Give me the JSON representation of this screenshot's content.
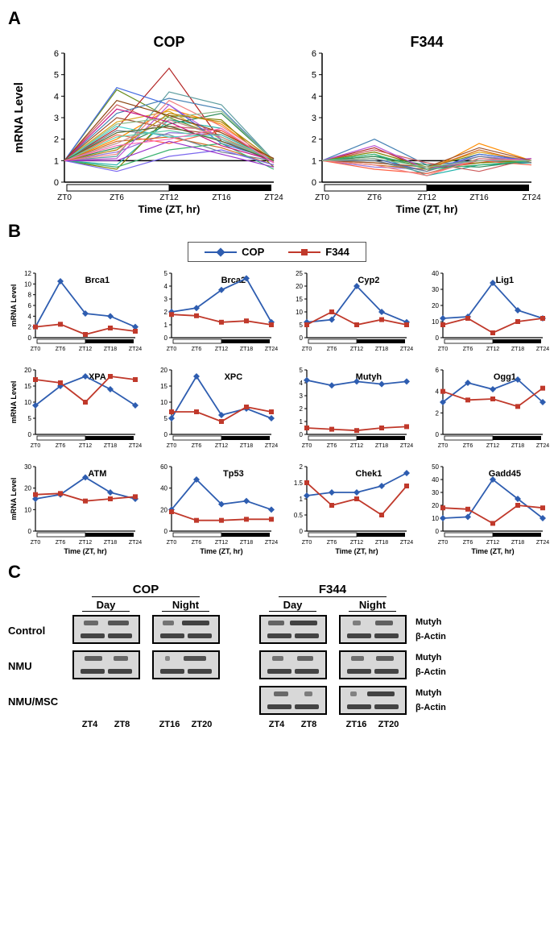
{
  "panelA": {
    "label": "A",
    "leftTitle": "COP",
    "rightTitle": "F344",
    "yLabel": "mRNA Level",
    "xLabel": "Time (ZT, hr)",
    "yMin": 0,
    "yMax": 6,
    "yTick": 1,
    "xTicks": [
      "ZT0",
      "ZT6",
      "ZT12",
      "ZT16",
      "ZT24"
    ],
    "copColors": [
      "#6b8e23",
      "#b22222",
      "#4682b4",
      "#ff8c00",
      "#9370db",
      "#20b2aa",
      "#daa520",
      "#cd5c5c",
      "#5f9ea0",
      "#d2691e",
      "#808000",
      "#4169e1",
      "#ff6347",
      "#2e8b57",
      "#ba55d3",
      "#a0522d",
      "#708090",
      "#3cb371",
      "#f08080",
      "#8fbc8f",
      "#bc8f8f",
      "#7b68ee",
      "#48d1cc",
      "#c71585",
      "#b8860b",
      "#66cdaa",
      "#9932cc",
      "#8b4513",
      "#556b2f",
      "#ff69b4"
    ],
    "copSeries": [
      [
        1,
        4.3,
        3.0,
        2.1,
        1.0
      ],
      [
        1,
        2.5,
        5.3,
        1.9,
        1.1
      ],
      [
        1,
        3.2,
        3.9,
        3.4,
        1.0
      ],
      [
        1,
        2.0,
        3.4,
        2.7,
        0.9
      ],
      [
        1,
        1.4,
        2.3,
        2.2,
        1.0
      ],
      [
        1,
        0.8,
        2.9,
        2.5,
        0.9
      ],
      [
        1,
        2.8,
        3.3,
        2.0,
        1.1
      ],
      [
        1,
        3.6,
        2.6,
        2.4,
        1.0
      ],
      [
        1,
        1.2,
        4.2,
        3.6,
        1.0
      ],
      [
        1,
        1.9,
        2.1,
        1.6,
        0.8
      ],
      [
        1,
        0.6,
        3.1,
        2.9,
        0.7
      ],
      [
        1,
        4.4,
        3.6,
        1.8,
        1.05
      ],
      [
        1,
        2.2,
        1.8,
        2.4,
        1.0
      ],
      [
        1,
        1.6,
        2.7,
        3.2,
        1.0
      ],
      [
        1,
        1.1,
        3.6,
        2.0,
        0.9
      ],
      [
        1,
        3.0,
        2.5,
        2.2,
        1.1
      ],
      [
        1,
        2.4,
        2.2,
        1.4,
        1.0
      ],
      [
        1,
        0.7,
        1.5,
        1.8,
        0.6
      ],
      [
        1,
        1.3,
        3.8,
        2.6,
        1.0
      ],
      [
        1,
        2.7,
        3.0,
        3.3,
        1.0
      ],
      [
        1,
        1.8,
        2.9,
        2.1,
        0.95
      ],
      [
        1,
        0.5,
        1.2,
        1.5,
        0.8
      ],
      [
        1,
        2.6,
        2.1,
        2.2,
        1.0
      ],
      [
        1,
        3.4,
        2.8,
        1.7,
        1.0
      ],
      [
        1,
        1.5,
        3.2,
        2.8,
        1.0
      ],
      [
        1,
        2.1,
        2.4,
        2.0,
        1.0
      ],
      [
        1,
        1.0,
        1.9,
        1.3,
        0.7
      ],
      [
        1,
        3.8,
        3.1,
        2.3,
        1.1
      ],
      [
        1,
        2.3,
        2.6,
        1.9,
        1.0
      ],
      [
        1,
        1.7,
        2.0,
        2.5,
        0.9
      ]
    ],
    "f344Series": [
      [
        1,
        1.2,
        0.7,
        1.3,
        1.0
      ],
      [
        1,
        1.6,
        0.6,
        0.9,
        1.1
      ],
      [
        1,
        2.0,
        0.8,
        1.0,
        0.9
      ],
      [
        1,
        1.1,
        0.5,
        1.8,
        1.0
      ],
      [
        1,
        0.7,
        0.6,
        1.2,
        1.0
      ],
      [
        1,
        1.3,
        0.3,
        0.8,
        0.9
      ],
      [
        1,
        0.9,
        0.7,
        1.4,
        1.0
      ],
      [
        1,
        1.5,
        0.9,
        0.5,
        1.1
      ],
      [
        1,
        1.0,
        0.4,
        1.1,
        1.0
      ],
      [
        1,
        0.8,
        0.6,
        1.5,
        0.9
      ],
      [
        1,
        1.4,
        0.7,
        0.9,
        1.0
      ],
      [
        1,
        1.1,
        0.5,
        1.3,
        1.0
      ],
      [
        1,
        0.6,
        0.4,
        1.0,
        0.8
      ],
      [
        1,
        1.2,
        0.8,
        0.7,
        1.0
      ],
      [
        1,
        1.7,
        0.6,
        1.0,
        1.1
      ],
      [
        1,
        0.9,
        0.7,
        1.6,
        1.0
      ],
      [
        1,
        1.0,
        0.5,
        1.2,
        0.9
      ],
      [
        1,
        1.3,
        0.6,
        0.8,
        1.0
      ],
      [
        1,
        0.8,
        0.3,
        1.1,
        1.0
      ],
      [
        1,
        1.1,
        0.7,
        1.0,
        1.0
      ]
    ]
  },
  "panelB": {
    "label": "B",
    "legend": {
      "cop": "COP",
      "copColor": "#2e5db0",
      "f344": "F344",
      "f344Color": "#c0392b"
    },
    "xTicks": [
      "ZT0",
      "ZT6",
      "ZT12",
      "ZT18",
      "ZT24"
    ],
    "yLabel": "mRNA Level",
    "xLabel": "Time (ZT, hr)",
    "charts": [
      {
        "title": "Brca1",
        "yMax": 12,
        "yTick": 2,
        "cop": [
          2,
          10.5,
          4.5,
          4,
          2
        ],
        "f344": [
          2,
          2.5,
          0.6,
          1.8,
          1.2
        ]
      },
      {
        "title": "Brca2",
        "yMax": 5,
        "yTick": 1,
        "cop": [
          2,
          2.3,
          3.7,
          4.6,
          1.2
        ],
        "f344": [
          1.8,
          1.7,
          1.2,
          1.3,
          1
        ]
      },
      {
        "title": "Cyp2",
        "yMax": 25,
        "yTick": 5,
        "cop": [
          6,
          7,
          20,
          10,
          6
        ],
        "f344": [
          5,
          10,
          5,
          7,
          5
        ]
      },
      {
        "title": "Lig1",
        "yMax": 40,
        "yTick": 10,
        "cop": [
          12,
          13,
          34,
          17,
          12
        ],
        "f344": [
          8,
          12,
          3,
          10,
          12
        ]
      },
      {
        "title": "XPA",
        "yMax": 20,
        "yTick": 5,
        "cop": [
          9,
          15,
          18,
          14,
          9
        ],
        "f344": [
          17,
          16,
          10,
          18,
          17
        ]
      },
      {
        "title": "XPC",
        "yMax": 20,
        "yTick": 5,
        "cop": [
          5,
          18,
          6,
          8,
          5
        ],
        "f344": [
          7,
          7,
          4,
          8.5,
          7
        ]
      },
      {
        "title": "Mutyh",
        "yMax": 5,
        "yTick": 1,
        "cop": [
          4.2,
          3.8,
          4.1,
          3.9,
          4.1
        ],
        "f344": [
          0.5,
          0.4,
          0.3,
          0.5,
          0.6
        ]
      },
      {
        "title": "Ogg1",
        "yMax": 6,
        "yTick": 2,
        "cop": [
          3,
          4.8,
          4.2,
          5.1,
          3
        ],
        "f344": [
          4,
          3.2,
          3.3,
          2.6,
          4.3
        ]
      },
      {
        "title": "ATM",
        "yMax": 30,
        "yTick": 10,
        "cop": [
          15,
          17,
          25,
          18,
          15
        ],
        "f344": [
          17,
          17.5,
          14,
          15,
          16
        ]
      },
      {
        "title": "Tp53",
        "yMax": 60,
        "yTick": 20,
        "cop": [
          20,
          48,
          25,
          28,
          20
        ],
        "f344": [
          18,
          10,
          10,
          11,
          11
        ]
      },
      {
        "title": "Chek1",
        "yMax": 2,
        "yTick": 0.5,
        "cop": [
          1.1,
          1.2,
          1.2,
          1.4,
          1.8
        ],
        "f344": [
          1.5,
          0.8,
          1,
          0.5,
          1.4
        ]
      },
      {
        "title": "Gadd45",
        "yMax": 50,
        "yTick": 10,
        "cop": [
          10,
          11,
          40,
          25,
          10
        ],
        "f344": [
          18,
          17,
          6,
          20,
          18
        ]
      }
    ]
  },
  "panelC": {
    "label": "C",
    "strains": [
      "COP",
      "F344"
    ],
    "periods": [
      "Day",
      "Night"
    ],
    "rowLabels": [
      "Control",
      "NMU",
      "NMU/MSC"
    ],
    "sideLabels": [
      "Mutyh",
      "β-Actin"
    ],
    "zt": {
      "day": [
        "ZT4",
        "ZT8"
      ],
      "night": [
        "ZT16",
        "ZT20"
      ]
    },
    "bands": {
      "Control": {
        "COP": {
          "Day": {
            "mutyh": [
              18,
              26
            ],
            "actin": [
              30,
              30
            ]
          },
          "Night": {
            "mutyh": [
              14,
              34
            ],
            "actin": [
              30,
              30
            ]
          }
        },
        "F344": {
          "Day": {
            "mutyh": [
              20,
              34
            ],
            "actin": [
              30,
              30
            ]
          },
          "Night": {
            "mutyh": [
              10,
              22
            ],
            "actin": [
              30,
              30
            ]
          }
        }
      },
      "NMU": {
        "COP": {
          "Day": {
            "mutyh": [
              22,
              18
            ],
            "actin": [
              30,
              30
            ]
          },
          "Night": {
            "mutyh": [
              6,
              28
            ],
            "actin": [
              30,
              30
            ]
          }
        },
        "F344": {
          "Day": {
            "mutyh": [
              14,
              20
            ],
            "actin": [
              30,
              30
            ]
          },
          "Night": {
            "mutyh": [
              16,
              22
            ],
            "actin": [
              30,
              30
            ]
          }
        }
      },
      "NMU/MSC": {
        "F344": {
          "Day": {
            "mutyh": [
              18,
              10
            ],
            "actin": [
              30,
              30
            ]
          },
          "Night": {
            "mutyh": [
              8,
              34
            ],
            "actin": [
              30,
              30
            ]
          }
        }
      }
    }
  }
}
